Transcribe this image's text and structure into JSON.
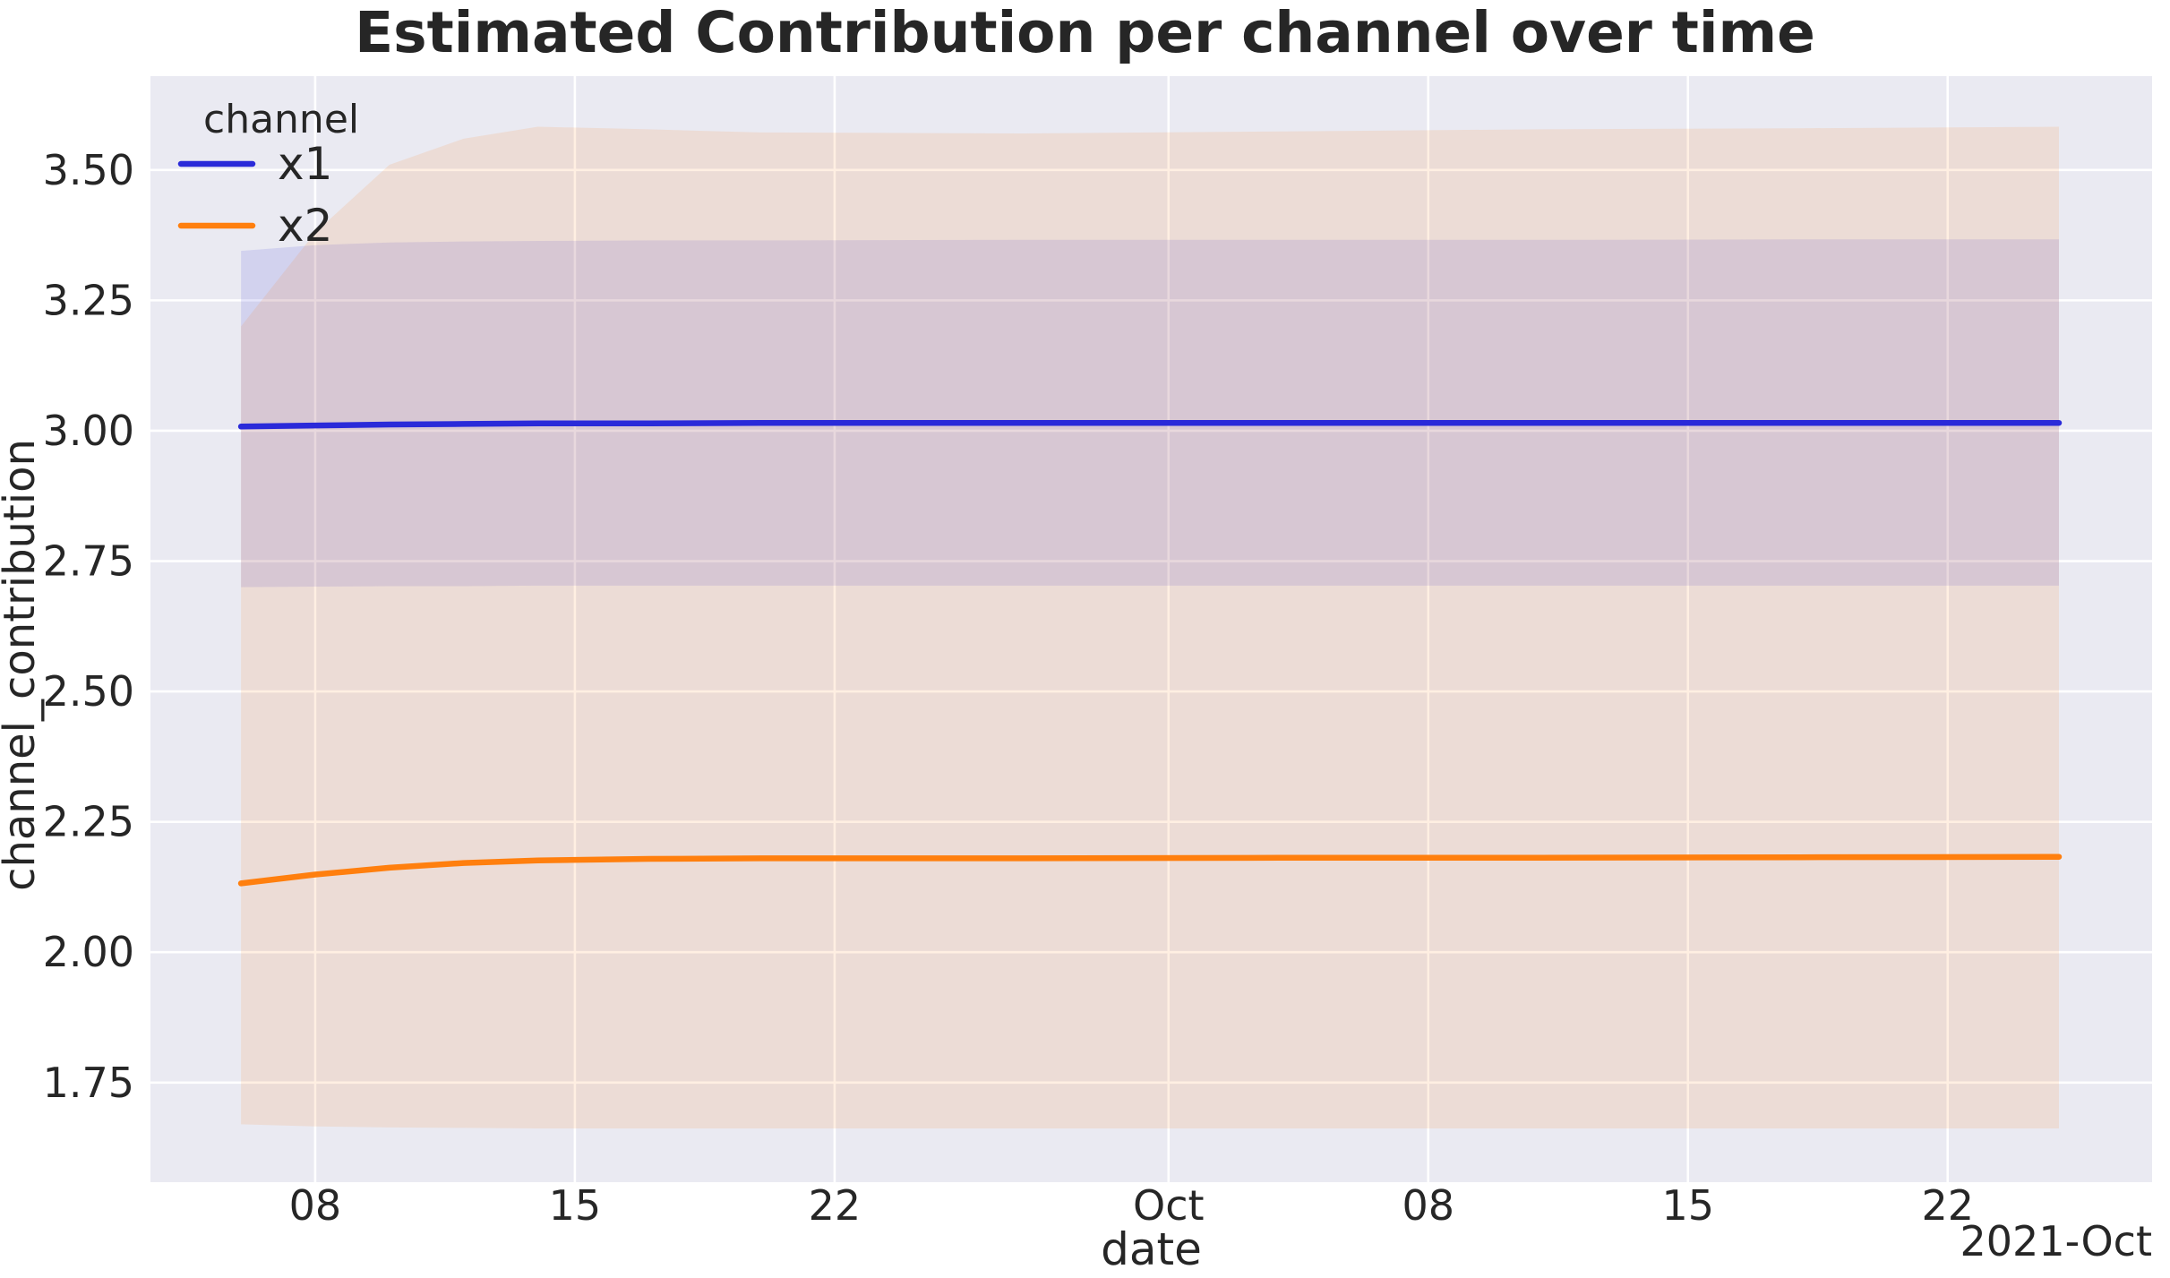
{
  "window": {
    "title": "Estimated Contribution per channel over time"
  },
  "colors": {
    "figure_background": "#ffffff",
    "axes_background": "#eaeaf2",
    "gridline": "#ffffff",
    "text": "#262626",
    "x1_line": "#2a2ad9",
    "x2_line": "#ff7f0e"
  },
  "chart_data": {
    "type": "line",
    "title": "Estimated Contribution per channel over time",
    "xlabel": "date",
    "ylabel": "channel_contribution",
    "x_offset_label": "2021-Oct",
    "grid": true,
    "legend": {
      "title": "channel",
      "position": "upper left",
      "entries": [
        "x1",
        "x2"
      ]
    },
    "x_start_date": "2021-09-06",
    "x_end_date": "2021-10-25",
    "x_days": [
      0,
      2,
      4,
      6,
      8,
      11,
      14,
      21,
      28,
      35,
      42,
      49
    ],
    "x_ticks": [
      {
        "day": 2,
        "label": "08"
      },
      {
        "day": 9,
        "label": "15"
      },
      {
        "day": 16,
        "label": "22"
      },
      {
        "day": 25,
        "label": "Oct"
      },
      {
        "day": 32,
        "label": "08"
      },
      {
        "day": 39,
        "label": "15"
      },
      {
        "day": 46,
        "label": "22"
      }
    ],
    "y_ticks": [
      {
        "value": 1.75,
        "label": "1.75"
      },
      {
        "value": 2.0,
        "label": "2.00"
      },
      {
        "value": 2.25,
        "label": "2.25"
      },
      {
        "value": 2.5,
        "label": "2.50"
      },
      {
        "value": 2.75,
        "label": "2.75"
      },
      {
        "value": 3.0,
        "label": "3.00"
      },
      {
        "value": 3.25,
        "label": "3.25"
      },
      {
        "value": 3.5,
        "label": "3.50"
      }
    ],
    "ylim": [
      1.559,
      3.68
    ],
    "xlim_days": [
      -2.44,
      51.51
    ],
    "band_opacity": 0.12,
    "series": [
      {
        "name": "x1",
        "color": "#2a2ad9",
        "values": [
          3.008,
          3.01,
          3.012,
          3.013,
          3.014,
          3.014,
          3.015,
          3.015,
          3.015,
          3.015,
          3.015,
          3.015
        ],
        "band_high": [
          3.345,
          3.356,
          3.361,
          3.363,
          3.364,
          3.365,
          3.365,
          3.366,
          3.366,
          3.366,
          3.367,
          3.367
        ],
        "band_low": [
          2.7,
          2.701,
          2.702,
          2.702,
          2.703,
          2.703,
          2.703,
          2.703,
          2.703,
          2.703,
          2.703,
          2.703
        ]
      },
      {
        "name": "x2",
        "color": "#ff7f0e",
        "values": [
          2.132,
          2.149,
          2.162,
          2.171,
          2.176,
          2.179,
          2.18,
          2.18,
          2.181,
          2.181,
          2.182,
          2.183
        ],
        "band_high": [
          3.2,
          3.38,
          3.51,
          3.56,
          3.583,
          3.578,
          3.572,
          3.57,
          3.574,
          3.578,
          3.58,
          3.583
        ],
        "band_low": [
          1.67,
          1.666,
          1.664,
          1.663,
          1.662,
          1.662,
          1.662,
          1.662,
          1.662,
          1.662,
          1.662,
          1.662
        ]
      }
    ]
  }
}
